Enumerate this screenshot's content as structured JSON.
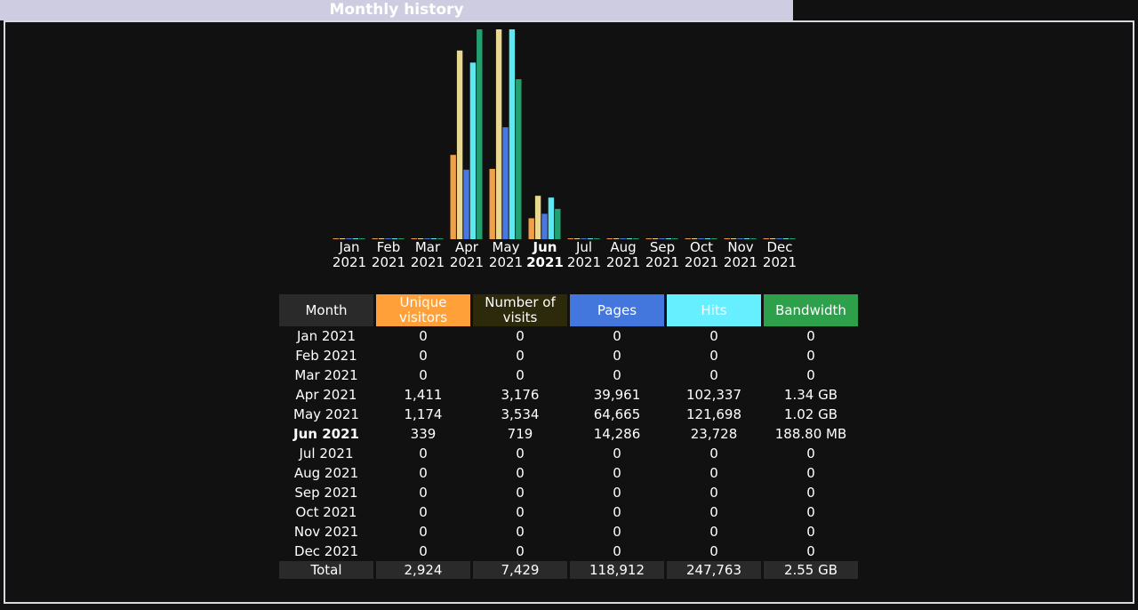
{
  "header": {
    "title": "Monthly history"
  },
  "chart_data": {
    "type": "bar",
    "categories": [
      "Jan 2021",
      "Feb 2021",
      "Mar 2021",
      "Apr 2021",
      "May 2021",
      "Jun 2021",
      "Jul 2021",
      "Aug 2021",
      "Sep 2021",
      "Oct 2021",
      "Nov 2021",
      "Dec 2021"
    ],
    "series": [
      {
        "color": "#f0a048",
        "values": [
          0,
          0,
          0,
          1411,
          1174,
          339,
          0,
          0,
          0,
          0,
          0,
          0
        ]
      },
      {
        "color": "#e8d890",
        "values": [
          0,
          0,
          0,
          3176,
          3534,
          719,
          0,
          0,
          0,
          0,
          0,
          0
        ]
      },
      {
        "color": "#4a78e0",
        "values": [
          0,
          0,
          0,
          39961,
          64665,
          14286,
          0,
          0,
          0,
          0,
          0,
          0
        ]
      },
      {
        "color": "#5ee8f0",
        "values": [
          0,
          0,
          0,
          102337,
          121698,
          23728,
          0,
          0,
          0,
          0,
          0,
          0
        ]
      },
      {
        "color": "#22a070",
        "values": [
          0,
          0,
          0,
          1.34,
          1.02,
          0.1888,
          0,
          0,
          0,
          0,
          0,
          0
        ]
      }
    ]
  },
  "table": {
    "headers": [
      "Month",
      "Unique visitors",
      "Number of visits",
      "Pages",
      "Hits",
      "Bandwidth"
    ],
    "rows": [
      [
        "Jan 2021",
        "0",
        "0",
        "0",
        "0",
        "0"
      ],
      [
        "Feb 2021",
        "0",
        "0",
        "0",
        "0",
        "0"
      ],
      [
        "Mar 2021",
        "0",
        "0",
        "0",
        "0",
        "0"
      ],
      [
        "Apr 2021",
        "1,411",
        "3,176",
        "39,961",
        "102,337",
        "1.34 GB"
      ],
      [
        "May 2021",
        "1,174",
        "3,534",
        "64,665",
        "121,698",
        "1.02 GB"
      ],
      [
        "Jun 2021",
        "339",
        "719",
        "14,286",
        "23,728",
        "188.80 MB"
      ],
      [
        "Jul 2021",
        "0",
        "0",
        "0",
        "0",
        "0"
      ],
      [
        "Aug 2021",
        "0",
        "0",
        "0",
        "0",
        "0"
      ],
      [
        "Sep 2021",
        "0",
        "0",
        "0",
        "0",
        "0"
      ],
      [
        "Oct 2021",
        "0",
        "0",
        "0",
        "0",
        "0"
      ],
      [
        "Nov 2021",
        "0",
        "0",
        "0",
        "0",
        "0"
      ],
      [
        "Dec 2021",
        "0",
        "0",
        "0",
        "0",
        "0"
      ]
    ],
    "total": [
      "Total",
      "2,924",
      "7,429",
      "118,912",
      "247,763",
      "2.55 GB"
    ]
  }
}
